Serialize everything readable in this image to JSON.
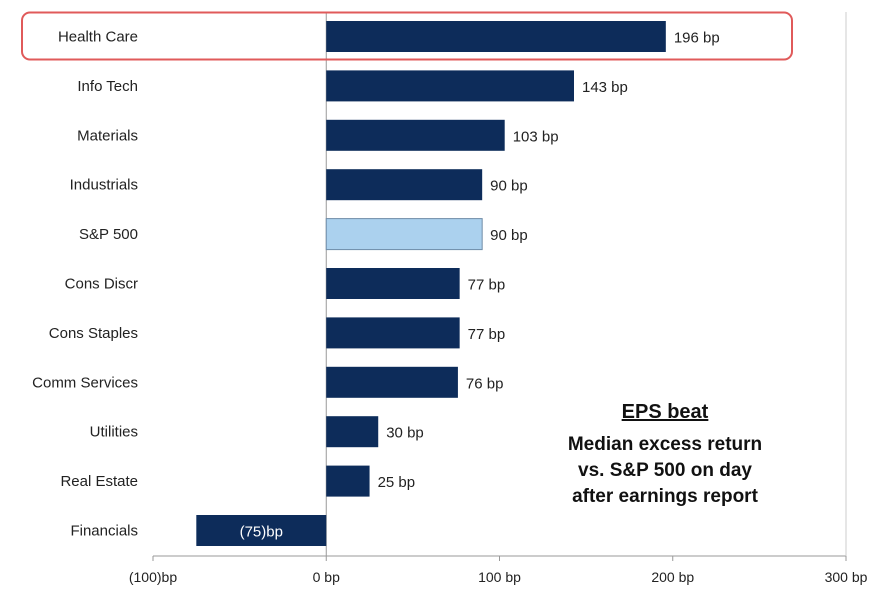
{
  "chart_data": {
    "type": "bar",
    "orientation": "horizontal",
    "categories": [
      "Health Care",
      "Info Tech",
      "Materials",
      "Industrials",
      "S&P 500",
      "Cons Discr",
      "Cons Staples",
      "Comm Services",
      "Utilities",
      "Real Estate",
      "Financials"
    ],
    "values": [
      196,
      143,
      103,
      90,
      90,
      77,
      77,
      76,
      30,
      25,
      -75
    ],
    "value_labels": [
      "196 bp",
      "143 bp",
      "103 bp",
      "90 bp",
      "90 bp",
      "77 bp",
      "77 bp",
      "76 bp",
      "30 bp",
      "25 bp",
      "(75)bp"
    ],
    "highlight_category": "Health Care",
    "benchmark_category": "S&P 500",
    "xlim": [
      -100,
      300
    ],
    "x_ticks": [
      -100,
      0,
      100,
      200,
      300
    ],
    "x_tick_labels": [
      "(100)bp",
      "0 bp",
      "100 bp",
      "200 bp",
      "300 bp"
    ],
    "grid": false,
    "colors": {
      "bar": "#0d2c5a",
      "benchmark_bar": "#abd1ee",
      "highlight_outline": "#e05a5a",
      "axis": "#999999"
    },
    "annotation": {
      "title": "EPS beat",
      "lines": [
        "Median excess return",
        "vs. S&P 500 on day",
        "after earnings report"
      ]
    }
  }
}
